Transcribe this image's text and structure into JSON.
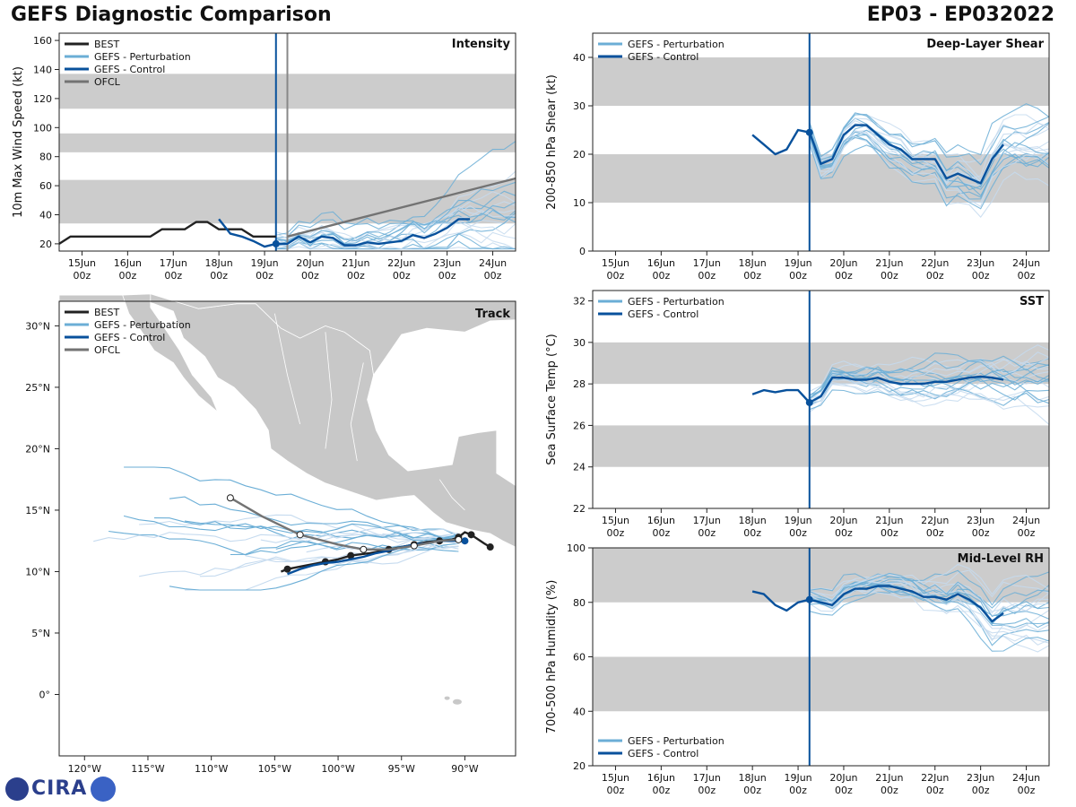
{
  "header": {
    "title_left": "GEFS Diagnostic Comparison",
    "title_right": "EP03 - EP032022"
  },
  "logo": {
    "text": "CIRA"
  },
  "colors": {
    "best": "#222222",
    "perturb": "#6baed6",
    "perturb_light": "#c6dbef",
    "control": "#08519c",
    "ofcl": "#737373",
    "band": "#cccccc",
    "land": "#c8c8c8",
    "vline": "#08519c",
    "ofcl_vline": "#888888"
  },
  "time_axis": {
    "ticks": [
      {
        "day": 1.0,
        "label1": "15Jun",
        "label2": "00z"
      },
      {
        "day": 2.0,
        "label1": "16Jun",
        "label2": "00z"
      },
      {
        "day": 3.0,
        "label1": "17Jun",
        "label2": "00z"
      },
      {
        "day": 4.0,
        "label1": "18Jun",
        "label2": "00z"
      },
      {
        "day": 5.0,
        "label1": "19Jun",
        "label2": "00z"
      },
      {
        "day": 6.0,
        "label1": "20Jun",
        "label2": "00z"
      },
      {
        "day": 7.0,
        "label1": "21Jun",
        "label2": "00z"
      },
      {
        "day": 8.0,
        "label1": "22Jun",
        "label2": "00z"
      },
      {
        "day": 9.0,
        "label1": "23Jun",
        "label2": "00z"
      },
      {
        "day": 10.0,
        "label1": "24Jun",
        "label2": "00z"
      }
    ],
    "xlim": [
      0.5,
      10.5
    ],
    "init_day": 5.25,
    "ofcl_day": 5.5
  },
  "chart_data": [
    {
      "id": "intensity",
      "type": "line",
      "title": "Intensity",
      "ylabel": "10m Max Wind Speed (kt)",
      "ylim": [
        15,
        165
      ],
      "yticks": [
        20,
        40,
        60,
        80,
        100,
        120,
        140,
        160
      ],
      "bands": [
        [
          34,
          64
        ],
        [
          83,
          96
        ],
        [
          113,
          137
        ]
      ],
      "legend": [
        "BEST",
        "GEFS - Perturbation",
        "GEFS - Control",
        "OFCL"
      ],
      "series": [
        {
          "name": "BEST",
          "x": [
            0.5,
            0.75,
            1.0,
            1.25,
            1.5,
            1.75,
            2.0,
            2.25,
            2.5,
            2.75,
            3.0,
            3.25,
            3.5,
            3.75,
            4.0,
            4.25,
            4.5,
            4.75,
            5.0,
            5.25
          ],
          "y": [
            20,
            25,
            25,
            25,
            25,
            25,
            25,
            25,
            25,
            30,
            30,
            30,
            35,
            35,
            30,
            30,
            30,
            25,
            25,
            25
          ]
        },
        {
          "name": "GEFS - Control",
          "x": [
            4.0,
            4.25,
            4.5,
            4.75,
            5.0,
            5.25,
            5.5,
            5.75,
            6.0,
            6.25,
            6.5,
            6.75,
            7.0,
            7.25,
            7.5,
            7.75,
            8.0,
            8.25,
            8.5,
            8.75,
            9.0,
            9.25,
            9.5
          ],
          "y": [
            37,
            27,
            25,
            22,
            18,
            20,
            20,
            25,
            21,
            25,
            24,
            19,
            19,
            21,
            20,
            21,
            22,
            26,
            24,
            27,
            31,
            37,
            37
          ]
        },
        {
          "name": "OFCL",
          "x": [
            5.5,
            10.5
          ],
          "y": [
            25,
            65
          ]
        }
      ]
    },
    {
      "id": "shear",
      "type": "line",
      "title": "Deep-Layer Shear",
      "ylabel": "200-850 hPa Shear (kt)",
      "ylim": [
        0,
        45
      ],
      "yticks": [
        0,
        10,
        20,
        30,
        40
      ],
      "bands": [
        [
          10,
          20
        ],
        [
          30,
          40
        ]
      ],
      "legend": [
        "GEFS - Perturbation",
        "GEFS - Control"
      ],
      "series": [
        {
          "name": "GEFS - Control",
          "x": [
            4.0,
            4.25,
            4.5,
            4.75,
            5.0,
            5.25,
            5.35,
            5.5,
            5.75,
            6.0,
            6.25,
            6.5,
            6.75,
            7.0,
            7.25,
            7.5,
            7.75,
            8.0,
            8.25,
            8.5,
            8.75,
            9.0,
            9.25,
            9.5
          ],
          "y": [
            24,
            22,
            20,
            21,
            25,
            24.5,
            22,
            18,
            19,
            24,
            26,
            26,
            24,
            22,
            21,
            19,
            19,
            19,
            15,
            16,
            15,
            14,
            19,
            22
          ]
        }
      ]
    },
    {
      "id": "sst",
      "type": "line",
      "title": "SST",
      "ylabel": "Sea Surface Temp (°C)",
      "ylim": [
        22,
        32.5
      ],
      "yticks": [
        22,
        24,
        26,
        28,
        30,
        32
      ],
      "bands": [
        [
          24,
          26
        ],
        [
          28,
          30
        ]
      ],
      "legend": [
        "GEFS - Perturbation",
        "GEFS - Control"
      ],
      "series": [
        {
          "name": "GEFS - Control",
          "x": [
            4.0,
            4.25,
            4.5,
            4.75,
            5.0,
            5.25,
            5.5,
            5.75,
            6.0,
            6.25,
            6.5,
            6.75,
            7.0,
            7.25,
            7.5,
            7.75,
            8.0,
            8.25,
            8.5,
            8.75,
            9.0,
            9.25,
            9.5
          ],
          "y": [
            27.5,
            27.7,
            27.6,
            27.7,
            27.7,
            27.1,
            27.4,
            28.3,
            28.3,
            28.2,
            28.2,
            28.3,
            28.1,
            28.0,
            28.0,
            28.0,
            28.1,
            28.1,
            28.2,
            28.3,
            28.35,
            28.3,
            28.2
          ]
        }
      ]
    },
    {
      "id": "rh",
      "type": "line",
      "title": "Mid-Level RH",
      "ylabel": "700-500 hPa Humidity (%)",
      "ylim": [
        20,
        100
      ],
      "yticks": [
        20,
        40,
        60,
        80,
        100
      ],
      "bands": [
        [
          40,
          60
        ],
        [
          80,
          100
        ]
      ],
      "legend": [
        "GEFS - Perturbation",
        "GEFS - Control"
      ],
      "series": [
        {
          "name": "GEFS - Control",
          "x": [
            4.0,
            4.25,
            4.5,
            4.75,
            5.0,
            5.25,
            5.5,
            5.75,
            6.0,
            6.25,
            6.5,
            6.75,
            7.0,
            7.25,
            7.5,
            7.75,
            8.0,
            8.25,
            8.5,
            8.75,
            9.0,
            9.25,
            9.5
          ],
          "y": [
            84,
            83,
            79,
            77,
            80,
            81,
            80,
            79,
            83,
            85,
            85,
            86,
            86,
            85,
            84,
            82,
            82,
            81,
            83,
            81,
            78,
            73,
            76
          ]
        }
      ]
    },
    {
      "id": "track",
      "type": "scatter",
      "title": "Track",
      "xlim": [
        -122,
        -86
      ],
      "ylim": [
        -5,
        32
      ],
      "xticks": [
        {
          "v": -120,
          "label": "120°W"
        },
        {
          "v": -115,
          "label": "115°W"
        },
        {
          "v": -110,
          "label": "110°W"
        },
        {
          "v": -105,
          "label": "105°W"
        },
        {
          "v": -100,
          "label": "100°W"
        },
        {
          "v": -95,
          "label": "95°W"
        },
        {
          "v": -90,
          "label": "90°W"
        }
      ],
      "yticks": [
        {
          "v": 0,
          "label": "0°"
        },
        {
          "v": 5,
          "label": "5°N"
        },
        {
          "v": 10,
          "label": "10°N"
        },
        {
          "v": 15,
          "label": "15°N"
        },
        {
          "v": 20,
          "label": "20°N"
        },
        {
          "v": 25,
          "label": "25°N"
        },
        {
          "v": 30,
          "label": "30°N"
        }
      ],
      "legend": [
        "BEST",
        "GEFS - Perturbation",
        "GEFS - Control",
        "OFCL"
      ],
      "series": [
        {
          "name": "BEST",
          "lon": [
            -88.0,
            -88.5,
            -89.5,
            -90.0,
            -90.5,
            -91.0,
            -92.0,
            -93.0,
            -94.0,
            -95.0,
            -96.0,
            -97.5,
            -99.0,
            -100.0,
            -101.0,
            -102.5,
            -104.0,
            -104.5
          ],
          "lat": [
            12.0,
            12.3,
            13.0,
            13.2,
            12.8,
            12.6,
            12.5,
            12.4,
            12.2,
            12.0,
            11.8,
            11.5,
            11.3,
            11.0,
            10.8,
            10.5,
            10.2,
            10.0
          ]
        },
        {
          "name": "GEFS - Control",
          "lon": [
            -90.0,
            -91.0,
            -92.0,
            -93.0,
            -94.0,
            -95.0,
            -96.0,
            -97.0,
            -98.0,
            -99.0,
            -100.0,
            -101.0,
            -102.0,
            -103.0,
            -104.0
          ],
          "lat": [
            12.5,
            12.5,
            12.5,
            12.3,
            12.2,
            12.0,
            11.7,
            11.5,
            11.2,
            11.0,
            10.8,
            10.7,
            10.5,
            10.2,
            9.8
          ]
        },
        {
          "name": "OFCL",
          "lon": [
            -90.5,
            -92.0,
            -94.0,
            -96.0,
            -98.0,
            -100.0,
            -103.0,
            -106.0,
            -108.5
          ],
          "lat": [
            12.6,
            12.5,
            12.1,
            11.8,
            11.8,
            12.2,
            13.0,
            14.5,
            16.0
          ]
        }
      ]
    }
  ]
}
